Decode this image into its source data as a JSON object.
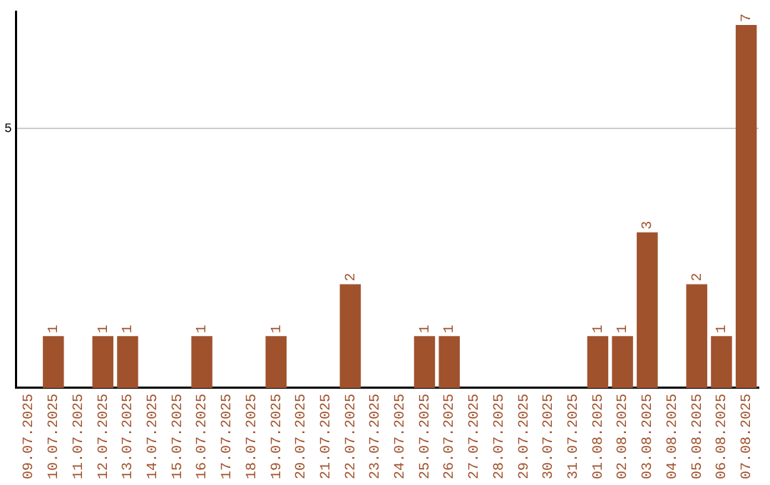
{
  "chart_data": {
    "type": "bar",
    "categories": [
      "09.07.2025",
      "10.07.2025",
      "11.07.2025",
      "12.07.2025",
      "13.07.2025",
      "14.07.2025",
      "15.07.2025",
      "16.07.2025",
      "17.07.2025",
      "18.07.2025",
      "19.07.2025",
      "20.07.2025",
      "21.07.2025",
      "22.07.2025",
      "23.07.2025",
      "24.07.2025",
      "25.07.2025",
      "26.07.2025",
      "27.07.2025",
      "28.07.2025",
      "29.07.2025",
      "30.07.2025",
      "31.07.2025",
      "01.08.2025",
      "02.08.2025",
      "03.08.2025",
      "04.08.2025",
      "05.08.2025",
      "06.08.2025",
      "07.08.2025"
    ],
    "values": [
      0,
      1,
      0,
      1,
      1,
      0,
      0,
      1,
      0,
      0,
      1,
      0,
      0,
      2,
      0,
      0,
      1,
      1,
      0,
      0,
      0,
      0,
      0,
      1,
      1,
      3,
      0,
      2,
      1,
      7
    ],
    "value_labels": [
      null,
      "1",
      null,
      "1",
      "1",
      null,
      null,
      "1",
      null,
      null,
      "1",
      null,
      null,
      "2",
      null,
      null,
      "1",
      "1",
      null,
      null,
      null,
      null,
      null,
      "1",
      "1",
      "3",
      null,
      "2",
      "1",
      "7"
    ],
    "color": "#a0522d",
    "ylim": [
      0,
      7.25
    ],
    "yticks": [
      5
    ],
    "grid": "y"
  }
}
